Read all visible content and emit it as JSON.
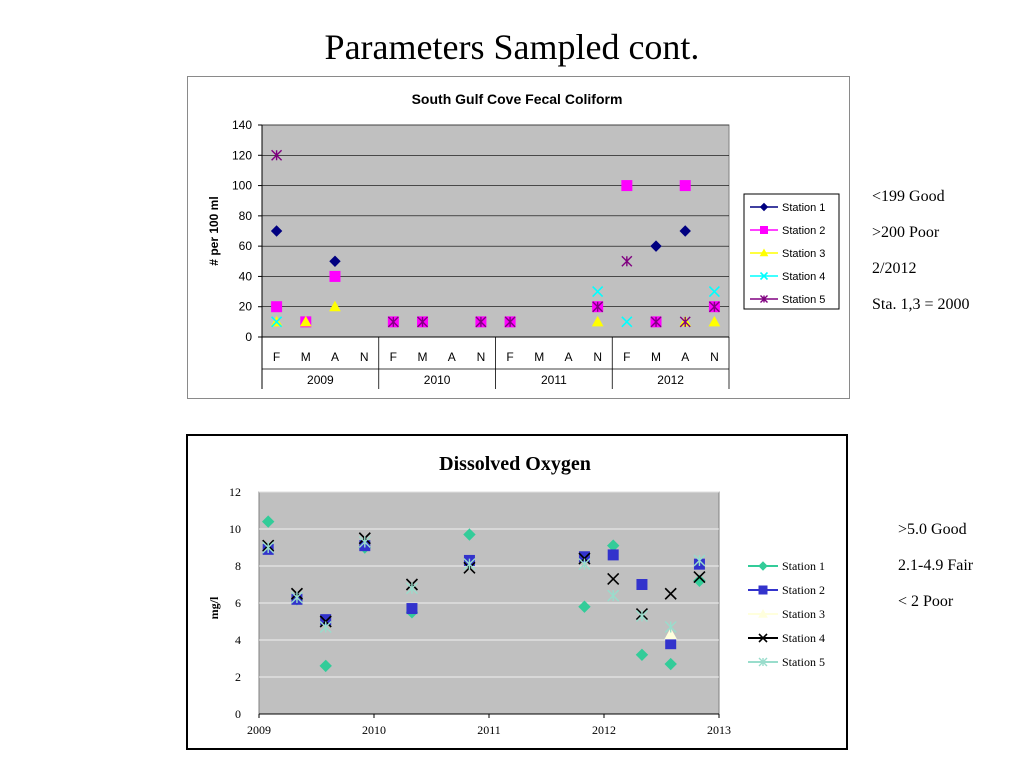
{
  "slide": {
    "title": "Parameters Sampled cont."
  },
  "notes_fecal": [
    "<199 Good",
    ">200 Poor",
    "2/2012",
    "Sta. 1,3 = 2000"
  ],
  "notes_do": [
    ">5.0 Good",
    "2.1-4.9 Fair",
    "< 2 Poor"
  ],
  "chart_data": [
    {
      "type": "scatter",
      "title": "South Gulf Cove Fecal Coliform",
      "ylabel": "# per 100 ml",
      "xlabel": "",
      "ylim": [
        0,
        140
      ],
      "yticks": [
        0,
        20,
        40,
        60,
        80,
        100,
        120,
        140
      ],
      "categories": [
        "F",
        "M",
        "A",
        "N",
        "F",
        "M",
        "A",
        "N",
        "F",
        "M",
        "A",
        "N",
        "F",
        "M",
        "A",
        "N"
      ],
      "year_groups": [
        {
          "label": "2009",
          "span": 4
        },
        {
          "label": "2010",
          "span": 4
        },
        {
          "label": "2011",
          "span": 4
        },
        {
          "label": "2012",
          "span": 4
        }
      ],
      "grid": true,
      "legend_position": "right",
      "plot_bg": "#c0c0c0",
      "series": [
        {
          "name": "Station 1",
          "color": "#000080",
          "marker": "diamond",
          "values": [
            70,
            null,
            50,
            null,
            null,
            null,
            null,
            null,
            null,
            null,
            null,
            null,
            null,
            60,
            70,
            null
          ]
        },
        {
          "name": "Station 2",
          "color": "#ff00ff",
          "marker": "square",
          "values": [
            20,
            10,
            40,
            null,
            10,
            10,
            null,
            10,
            10,
            null,
            null,
            20,
            100,
            10,
            100,
            20
          ]
        },
        {
          "name": "Station 3",
          "color": "#ffff00",
          "marker": "triangle",
          "values": [
            10,
            10,
            20,
            null,
            null,
            null,
            null,
            null,
            null,
            null,
            null,
            10,
            null,
            null,
            10,
            10
          ]
        },
        {
          "name": "Station 4",
          "color": "#00ffff",
          "marker": "x",
          "values": [
            10,
            null,
            null,
            null,
            null,
            null,
            null,
            null,
            null,
            null,
            null,
            30,
            10,
            null,
            null,
            30
          ]
        },
        {
          "name": "Station 5",
          "color": "#800080",
          "marker": "star",
          "values": [
            120,
            null,
            null,
            null,
            10,
            10,
            null,
            10,
            10,
            null,
            null,
            20,
            50,
            10,
            10,
            20
          ]
        }
      ]
    },
    {
      "type": "scatter",
      "title": "Dissolved Oxygen",
      "ylabel": "mg/l",
      "xlabel": "",
      "xlim": [
        2009,
        2013
      ],
      "ylim": [
        0,
        12
      ],
      "xticks": [
        2009,
        2010,
        2011,
        2012,
        2013
      ],
      "yticks": [
        0,
        2,
        4,
        6,
        8,
        10,
        12
      ],
      "grid": true,
      "legend_position": "right",
      "plot_bg": "#c0c0c0",
      "series": [
        {
          "name": "Station 1",
          "color": "#33cc99",
          "marker": "diamond",
          "points": [
            [
              2009.08,
              10.4
            ],
            [
              2009.33,
              6.2
            ],
            [
              2009.58,
              2.6
            ],
            [
              2009.92,
              9.0
            ],
            [
              2010.33,
              5.5
            ],
            [
              2010.83,
              9.7
            ],
            [
              2011.83,
              5.8
            ],
            [
              2012.08,
              9.1
            ],
            [
              2012.33,
              3.2
            ],
            [
              2012.58,
              2.7
            ],
            [
              2012.83,
              7.2
            ]
          ]
        },
        {
          "name": "Station 2",
          "color": "#3333cc",
          "marker": "square",
          "points": [
            [
              2009.08,
              8.9
            ],
            [
              2009.33,
              6.2
            ],
            [
              2009.58,
              5.1
            ],
            [
              2009.92,
              9.1
            ],
            [
              2010.33,
              5.7
            ],
            [
              2010.83,
              8.3
            ],
            [
              2011.83,
              8.5
            ],
            [
              2012.08,
              8.6
            ],
            [
              2012.33,
              7.0
            ],
            [
              2012.58,
              3.8
            ],
            [
              2012.83,
              8.1
            ]
          ]
        },
        {
          "name": "Station 3",
          "color": "#ffffdd",
          "marker": "triangle",
          "points": [
            [
              2012.58,
              4.3
            ]
          ]
        },
        {
          "name": "Station 4",
          "color": "#000000",
          "marker": "x",
          "points": [
            [
              2009.08,
              9.1
            ],
            [
              2009.33,
              6.5
            ],
            [
              2009.58,
              5.0
            ],
            [
              2009.92,
              9.5
            ],
            [
              2010.33,
              7.0
            ],
            [
              2010.83,
              7.9
            ],
            [
              2011.83,
              8.4
            ],
            [
              2012.08,
              7.3
            ],
            [
              2012.33,
              5.4
            ],
            [
              2012.58,
              6.5
            ],
            [
              2012.83,
              7.4
            ]
          ]
        },
        {
          "name": "Station 5",
          "color": "#99ddcc",
          "marker": "star",
          "points": [
            [
              2009.08,
              9.0
            ],
            [
              2009.33,
              6.3
            ],
            [
              2009.58,
              4.7
            ],
            [
              2009.92,
              9.3
            ],
            [
              2010.33,
              6.8
            ],
            [
              2010.83,
              8.1
            ],
            [
              2011.83,
              8.1
            ],
            [
              2012.08,
              6.4
            ],
            [
              2012.33,
              5.3
            ],
            [
              2012.58,
              4.7
            ],
            [
              2012.83,
              8.3
            ]
          ]
        }
      ]
    }
  ]
}
